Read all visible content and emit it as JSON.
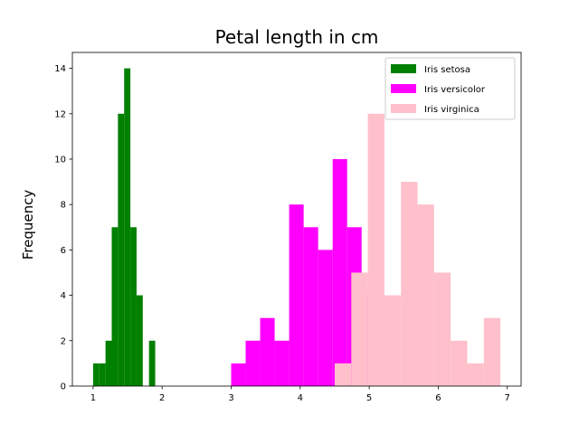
{
  "chart_data": {
    "type": "bar",
    "title": "Petal length in cm",
    "xlabel": "",
    "ylabel": "Frequency",
    "xlim": [
      0.7,
      7.2
    ],
    "ylim": [
      0,
      14.7
    ],
    "xticks": [
      1,
      2,
      3,
      4,
      5,
      6,
      7
    ],
    "yticks": [
      0,
      2,
      4,
      6,
      8,
      10,
      12,
      14
    ],
    "grid": false,
    "legend_position": "top-right",
    "series": [
      {
        "name": "Iris setosa",
        "color": "#008000",
        "bin_edges": [
          1.0,
          1.09,
          1.18,
          1.27,
          1.36,
          1.45,
          1.54,
          1.63,
          1.72,
          1.81,
          1.9
        ],
        "counts": [
          1,
          1,
          2,
          7,
          12,
          14,
          7,
          4,
          0,
          2
        ]
      },
      {
        "name": "Iris versicolor",
        "color": "#ff00ff",
        "bin_edges": [
          3.0,
          3.21,
          3.42,
          3.63,
          3.84,
          4.05,
          4.26,
          4.47,
          4.68,
          4.89,
          5.1
        ],
        "counts": [
          1,
          2,
          3,
          2,
          8,
          7,
          6,
          10,
          7,
          4
        ]
      },
      {
        "name": "Iris virginica",
        "color": "#ffc0cb",
        "bin_edges": [
          4.5,
          4.74,
          4.98,
          5.22,
          5.46,
          5.7,
          5.94,
          6.18,
          6.42,
          6.66,
          6.9
        ],
        "counts": [
          1,
          5,
          12,
          4,
          9,
          8,
          5,
          2,
          1,
          3
        ]
      }
    ]
  }
}
